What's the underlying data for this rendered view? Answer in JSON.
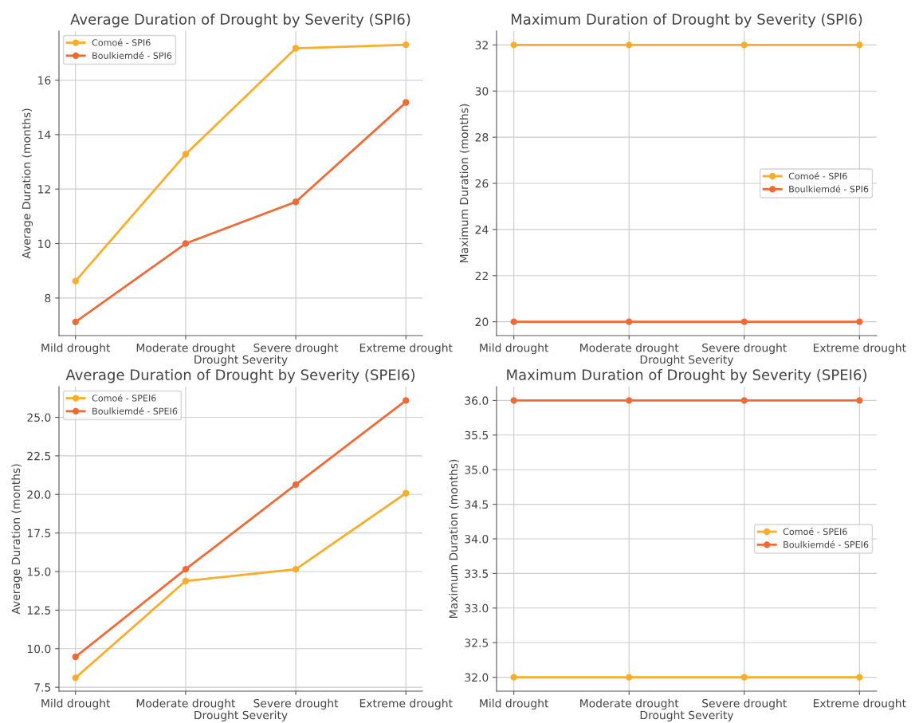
{
  "chart_data": [
    {
      "type": "line",
      "title": "Average Duration of Drought by Severity (SPI6)",
      "xlabel": "Drought Severity",
      "ylabel": "Average Duration (months)",
      "categories": [
        "Mild drought",
        "Moderate drought",
        "Severe drought",
        "Extreme drought"
      ],
      "series": [
        {
          "name": "Comoé - SPI6",
          "color": "#f9ad2a",
          "values": [
            8.62,
            13.28,
            17.17,
            17.3
          ]
        },
        {
          "name": "Boulkiemdé - SPI6",
          "color": "#f06a36",
          "values": [
            7.12,
            10.0,
            11.53,
            15.18
          ]
        }
      ],
      "ylim": [
        6.62,
        17.8
      ],
      "yticks": [
        8,
        10,
        12,
        14,
        16
      ],
      "grid": true,
      "legend": "top left",
      "marker": "circle",
      "line_style": "solid"
    },
    {
      "type": "line",
      "title": "Maximum Duration of Drought by Severity (SPI6)",
      "xlabel": "Drought Severity",
      "ylabel": "Maximum Duration (months)",
      "categories": [
        "Mild drought",
        "Moderate drought",
        "Severe drought",
        "Extreme drought"
      ],
      "series": [
        {
          "name": "Comoé - SPI6",
          "color": "#f9ad2a",
          "values": [
            32,
            32,
            32,
            32
          ]
        },
        {
          "name": "Boulkiemdé - SPI6",
          "color": "#f06a36",
          "values": [
            20,
            20,
            20,
            20
          ]
        }
      ],
      "ylim": [
        19.4,
        32.6
      ],
      "yticks": [
        20,
        22,
        24,
        26,
        28,
        30,
        32
      ],
      "grid": true,
      "legend": "center right",
      "marker": "circle",
      "line_style": "solid"
    },
    {
      "type": "line",
      "title": "Average Duration of Drought by Severity (SPEI6)",
      "xlabel": "Drought Severity",
      "ylabel": "Average Duration (months)",
      "categories": [
        "Mild drought",
        "Moderate drought",
        "Severe drought",
        "Extreme drought"
      ],
      "series": [
        {
          "name": "Comoé - SPEI6",
          "color": "#f9ad2a",
          "values": [
            8.11,
            14.39,
            15.15,
            20.08
          ]
        },
        {
          "name": "Boulkiemdé - SPEI6",
          "color": "#f06a36",
          "values": [
            9.47,
            15.15,
            20.64,
            26.09
          ]
        }
      ],
      "ylim": [
        7.25,
        26.99
      ],
      "yticks": [
        {
          "value": 7.5,
          "label": "7.5"
        },
        {
          "value": 10,
          "label": "10.0"
        },
        {
          "value": 12.5,
          "label": "12.5"
        },
        {
          "value": 15,
          "label": "15.0"
        },
        {
          "value": 17.5,
          "label": "17.5"
        },
        {
          "value": 20,
          "label": "20.0"
        },
        {
          "value": 22.5,
          "label": "22.5"
        },
        {
          "value": 25,
          "label": "25.0"
        }
      ],
      "grid": true,
      "legend": "top left",
      "marker": "circle",
      "line_style": "solid"
    },
    {
      "type": "line",
      "title": "Maximum Duration of Drought by Severity (SPEI6)",
      "xlabel": "Drought Severity",
      "ylabel": "Maximum Duration (months)",
      "categories": [
        "Mild drought",
        "Moderate drought",
        "Severe drought",
        "Extreme drought"
      ],
      "series": [
        {
          "name": "Comoé - SPEI6",
          "color": "#f9ad2a",
          "values": [
            32,
            32,
            32,
            32
          ]
        },
        {
          "name": "Boulkiemdé - SPEI6",
          "color": "#f06a36",
          "values": [
            36,
            36,
            36,
            36
          ]
        }
      ],
      "ylim": [
        31.8,
        36.2
      ],
      "yticks": [
        {
          "value": 32,
          "label": "32.0"
        },
        {
          "value": 32.5,
          "label": "32.5"
        },
        {
          "value": 33,
          "label": "33.0"
        },
        {
          "value": 33.5,
          "label": "33.5"
        },
        {
          "value": 34,
          "label": "34.0"
        },
        {
          "value": 34.5,
          "label": "34.5"
        },
        {
          "value": 35,
          "label": "35.0"
        },
        {
          "value": 35.5,
          "label": "35.5"
        },
        {
          "value": 36,
          "label": "36.0"
        }
      ],
      "grid": true,
      "legend": "center right",
      "marker": "circle",
      "line_style": "solid"
    }
  ]
}
